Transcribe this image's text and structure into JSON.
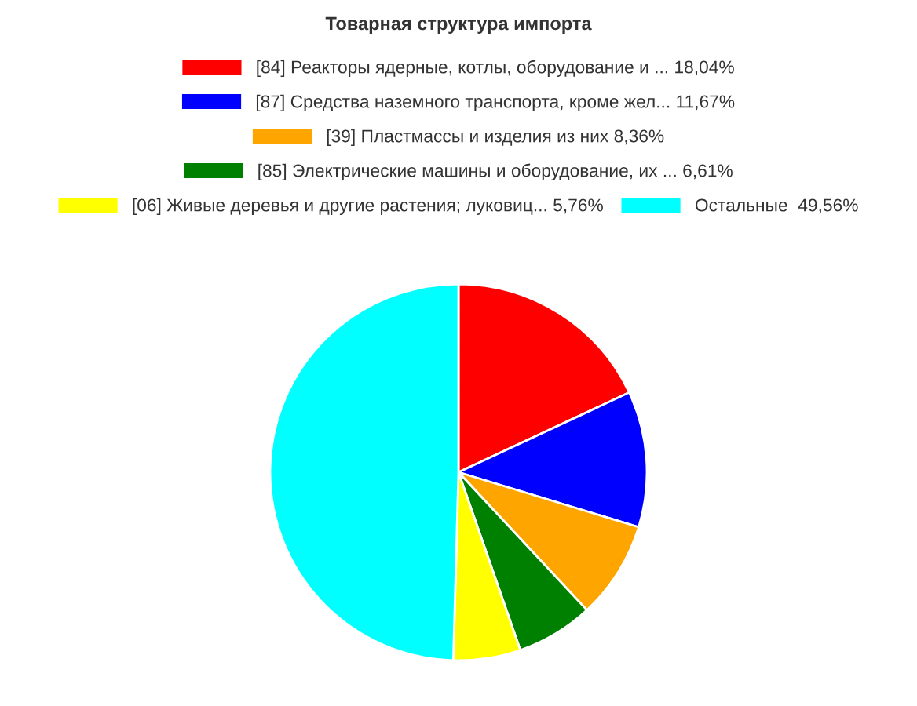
{
  "chart_data": {
    "type": "pie",
    "title": "Товарная структура импорта",
    "legend": "top",
    "categories": [
      "[84] Реакторы ядерные, котлы, оборудование и ... 18,04%",
      "[87] Средства наземного транспорта, кроме жел... 11,67%",
      "[39] Пластмассы и изделия из них 8,36%",
      "[85] Электрические машины и оборудование, их ... 6,61%",
      "[06] Живые деревья и другие растения; луковиц... 5,76%",
      "Остальные  49,56%"
    ],
    "values": [
      18.04,
      11.67,
      8.36,
      6.61,
      5.76,
      49.56
    ],
    "colors": [
      "#ff0000",
      "#0000ff",
      "#ffa500",
      "#008000",
      "#ffff00",
      "#00ffff"
    ]
  }
}
